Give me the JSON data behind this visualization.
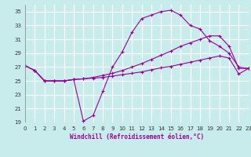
{
  "xlabel": "Windchill (Refroidissement éolien,°C)",
  "bg_color": "#c8ecec",
  "line_color": "#990099",
  "grid_color": "#ffffff",
  "xlim": [
    0,
    23
  ],
  "ylim": [
    19,
    36
  ],
  "xticks": [
    0,
    1,
    2,
    3,
    4,
    5,
    6,
    7,
    8,
    9,
    10,
    11,
    12,
    13,
    14,
    15,
    16,
    17,
    18,
    19,
    20,
    21,
    22,
    23
  ],
  "yticks": [
    19,
    21,
    23,
    25,
    27,
    29,
    31,
    33,
    35
  ],
  "series1_x": [
    0,
    1,
    2,
    3,
    4,
    5,
    6,
    7,
    8,
    9,
    10,
    11,
    12,
    13,
    14,
    15,
    16,
    17,
    18,
    19,
    20,
    21,
    22,
    23
  ],
  "series1_y": [
    27.2,
    26.5,
    25.0,
    25.0,
    25.0,
    25.2,
    19.2,
    20.0,
    23.5,
    27.0,
    29.2,
    32.0,
    34.0,
    34.5,
    35.0,
    35.2,
    34.5,
    33.0,
    32.5,
    30.8,
    30.0,
    29.0,
    27.0,
    26.8
  ],
  "series2_x": [
    0,
    1,
    2,
    3,
    4,
    5,
    6,
    7,
    8,
    9,
    10,
    11,
    12,
    13,
    14,
    15,
    16,
    17,
    18,
    19,
    20,
    21,
    22,
    23
  ],
  "series2_y": [
    27.2,
    26.5,
    25.0,
    25.0,
    25.0,
    25.2,
    25.3,
    25.4,
    25.5,
    25.7,
    25.9,
    26.1,
    26.3,
    26.6,
    26.9,
    27.1,
    27.4,
    27.7,
    28.0,
    28.3,
    28.6,
    28.3,
    26.0,
    26.8
  ],
  "series3_x": [
    0,
    1,
    2,
    3,
    4,
    5,
    6,
    7,
    8,
    9,
    10,
    11,
    12,
    13,
    14,
    15,
    16,
    17,
    18,
    19,
    20,
    21,
    22,
    23
  ],
  "series3_y": [
    27.2,
    26.5,
    25.0,
    25.0,
    25.0,
    25.2,
    25.3,
    25.5,
    25.8,
    26.1,
    26.5,
    27.0,
    27.5,
    28.1,
    28.7,
    29.3,
    30.0,
    30.5,
    31.0,
    31.5,
    31.5,
    30.0,
    26.8,
    26.8
  ]
}
